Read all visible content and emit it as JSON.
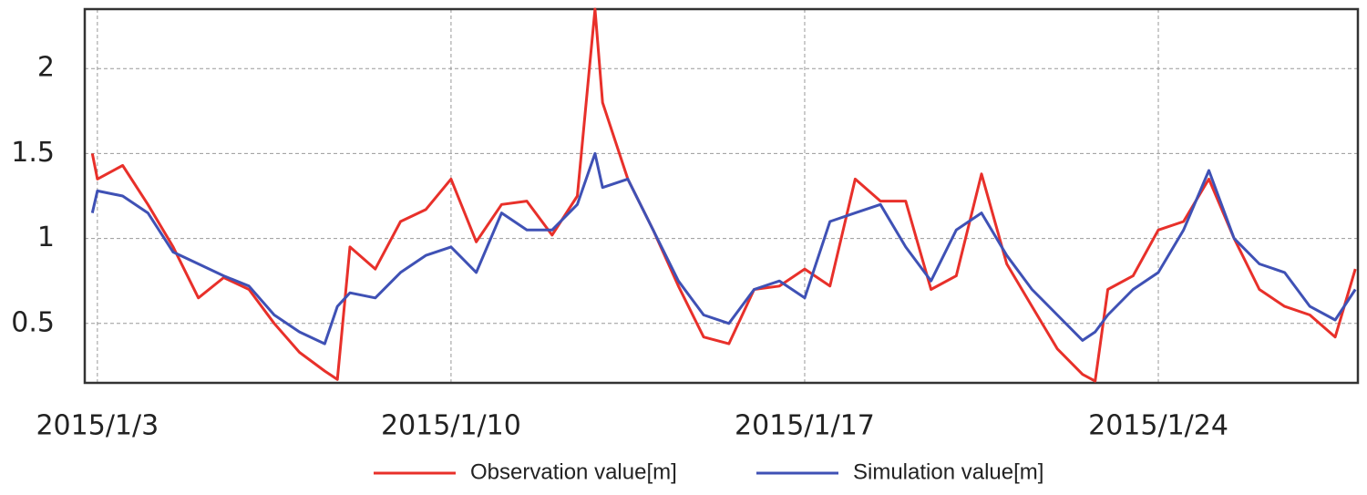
{
  "chart_data": {
    "type": "line",
    "x": [
      2.9,
      3,
      3.5,
      4,
      4.5,
      5,
      5.5,
      6,
      6.5,
      7,
      7.5,
      7.75,
      8,
      8.5,
      9,
      9.5,
      10,
      10.5,
      11,
      11.5,
      12,
      12.5,
      12.85,
      13,
      13.5,
      14,
      14.5,
      15,
      15.5,
      16,
      16.5,
      17,
      17.5,
      18,
      18.5,
      19,
      19.5,
      20,
      20.5,
      21,
      21.5,
      22,
      22.5,
      22.75,
      23,
      23.5,
      24,
      24.5,
      25,
      25.5,
      26,
      26.5,
      27,
      27.5,
      27.9
    ],
    "series": [
      {
        "name": "Observation value[m]",
        "color": "#e8302a",
        "values": [
          1.5,
          1.35,
          1.43,
          1.2,
          0.95,
          0.65,
          0.77,
          0.7,
          0.5,
          0.33,
          0.22,
          0.17,
          0.95,
          0.82,
          1.1,
          1.17,
          1.35,
          0.98,
          1.2,
          1.22,
          1.02,
          1.25,
          2.35,
          1.8,
          1.35,
          1.05,
          0.72,
          0.42,
          0.38,
          0.7,
          0.72,
          0.82,
          0.72,
          1.35,
          1.22,
          1.22,
          0.7,
          0.78,
          1.38,
          0.85,
          0.6,
          0.35,
          0.2,
          0.16,
          0.7,
          0.78,
          1.05,
          1.1,
          1.35,
          1.0,
          0.7,
          0.6,
          0.55,
          0.42,
          0.82
        ]
      },
      {
        "name": "Simulation value[m]",
        "color": "#3f51b5",
        "values": [
          1.15,
          1.28,
          1.25,
          1.15,
          0.92,
          0.85,
          0.78,
          0.72,
          0.55,
          0.45,
          0.38,
          0.6,
          0.68,
          0.65,
          0.8,
          0.9,
          0.95,
          0.8,
          1.15,
          1.05,
          1.05,
          1.2,
          1.5,
          1.3,
          1.35,
          1.05,
          0.75,
          0.55,
          0.5,
          0.7,
          0.75,
          0.65,
          1.1,
          1.15,
          1.2,
          0.95,
          0.75,
          1.05,
          1.15,
          0.9,
          0.7,
          0.55,
          0.4,
          0.45,
          0.55,
          0.7,
          0.8,
          1.05,
          1.4,
          1.0,
          0.85,
          0.8,
          0.6,
          0.52,
          0.7
        ]
      }
    ],
    "xlim": [
      2.75,
      27.95
    ],
    "xticks": [
      {
        "value": 3,
        "label": "2015/1/3"
      },
      {
        "value": 10,
        "label": "2015/1/10"
      },
      {
        "value": 17,
        "label": "2015/1/17"
      },
      {
        "value": 24,
        "label": "2015/1/24"
      }
    ],
    "ylim": [
      0.15,
      2.35
    ],
    "yticks": [
      0.5,
      1,
      1.5,
      2
    ],
    "grid": true
  }
}
